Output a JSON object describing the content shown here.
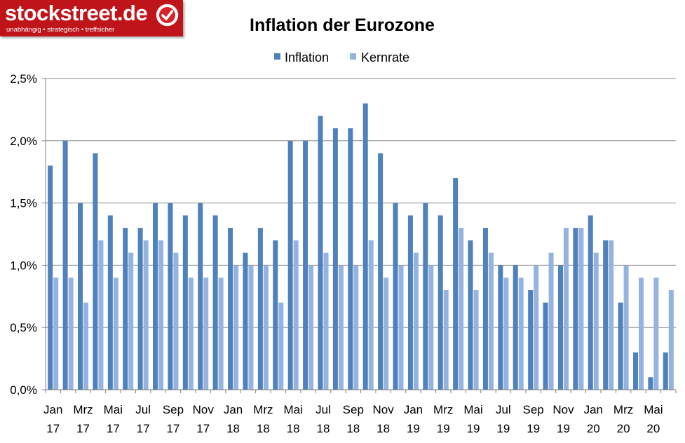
{
  "logo": {
    "name": "stockstreet.de",
    "tagline": "unabhängig • strategisch • treffsicher"
  },
  "chart_data": {
    "type": "bar",
    "title": "Inflation der Eurozone",
    "xlabel": "",
    "ylabel": "",
    "ylim": [
      0,
      2.5
    ],
    "yticks": [
      "0,0%",
      "0,5%",
      "1,0%",
      "1,5%",
      "2,0%",
      "2,5%"
    ],
    "ytick_values": [
      0,
      0.5,
      1.0,
      1.5,
      2.0,
      2.5
    ],
    "grid": true,
    "legend": "top",
    "categories": [
      "Jan 17",
      "Feb 17",
      "Mrz 17",
      "Apr 17",
      "Mai 17",
      "Jun 17",
      "Jul 17",
      "Aug 17",
      "Sep 17",
      "Okt 17",
      "Nov 17",
      "Dez 17",
      "Jan 18",
      "Feb 18",
      "Mrz 18",
      "Apr 18",
      "Mai 18",
      "Jun 18",
      "Jul 18",
      "Aug 18",
      "Sep 18",
      "Okt 18",
      "Nov 18",
      "Dez 18",
      "Jan 19",
      "Feb 19",
      "Mrz 19",
      "Apr 19",
      "Mai 19",
      "Jun 19",
      "Jul 19",
      "Aug 19",
      "Sep 19",
      "Okt 19",
      "Nov 19",
      "Dez 19",
      "Jan 20",
      "Feb 20",
      "Mrz 20",
      "Apr 20",
      "Mai 20",
      "Jun 20"
    ],
    "x_tick_labels": [
      {
        "month": "Jan",
        "year": "17"
      },
      {
        "month": "Mrz",
        "year": "17"
      },
      {
        "month": "Mai",
        "year": "17"
      },
      {
        "month": "Jul",
        "year": "17"
      },
      {
        "month": "Sep",
        "year": "17"
      },
      {
        "month": "Nov",
        "year": "17"
      },
      {
        "month": "Jan",
        "year": "18"
      },
      {
        "month": "Mrz",
        "year": "18"
      },
      {
        "month": "Mai",
        "year": "18"
      },
      {
        "month": "Jul",
        "year": "18"
      },
      {
        "month": "Sep",
        "year": "18"
      },
      {
        "month": "Nov",
        "year": "18"
      },
      {
        "month": "Jan",
        "year": "19"
      },
      {
        "month": "Mrz",
        "year": "19"
      },
      {
        "month": "Mai",
        "year": "19"
      },
      {
        "month": "Jul",
        "year": "19"
      },
      {
        "month": "Sep",
        "year": "19"
      },
      {
        "month": "Nov",
        "year": "19"
      },
      {
        "month": "Jan",
        "year": "20"
      },
      {
        "month": "Mrz",
        "year": "20"
      },
      {
        "month": "Mai",
        "year": "20"
      }
    ],
    "series": [
      {
        "name": "Inflation",
        "color": "#4f81bd",
        "values": [
          1.8,
          2.0,
          1.5,
          1.9,
          1.4,
          1.3,
          1.3,
          1.5,
          1.5,
          1.4,
          1.5,
          1.4,
          1.3,
          1.1,
          1.3,
          1.2,
          2.0,
          2.0,
          2.2,
          2.1,
          2.1,
          2.3,
          1.9,
          1.5,
          1.4,
          1.5,
          1.4,
          1.7,
          1.2,
          1.3,
          1.0,
          1.0,
          0.8,
          0.7,
          1.0,
          1.3,
          1.4,
          1.2,
          0.7,
          0.3,
          0.1,
          0.3
        ]
      },
      {
        "name": "Kernrate",
        "color": "#95b3e0",
        "values": [
          0.9,
          0.9,
          0.7,
          1.2,
          0.9,
          1.1,
          1.2,
          1.2,
          1.1,
          0.9,
          0.9,
          0.9,
          1.0,
          1.0,
          1.0,
          0.7,
          1.2,
          1.0,
          1.1,
          1.0,
          1.0,
          1.2,
          0.9,
          1.0,
          1.1,
          1.0,
          0.8,
          1.3,
          0.8,
          1.1,
          0.9,
          0.9,
          1.0,
          1.1,
          1.3,
          1.3,
          1.1,
          1.2,
          1.0,
          0.9,
          0.9,
          0.8
        ]
      }
    ]
  }
}
